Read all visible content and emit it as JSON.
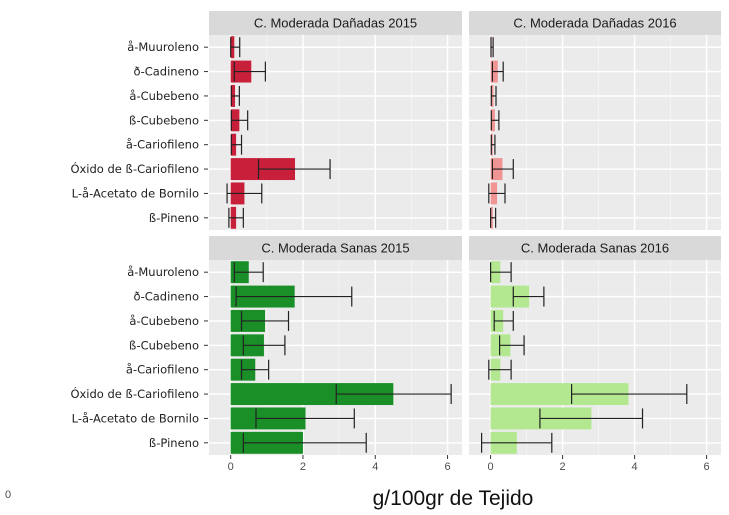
{
  "chart_data": {
    "type": "bar",
    "orientation": "horizontal",
    "facet_layout": "2x2",
    "xlabel": "g/100gr de Tejido",
    "ylabel": "",
    "xlim": [
      -0.6,
      6.4
    ],
    "xticks": [
      0,
      2,
      4,
      6
    ],
    "grid": true,
    "stray_label": "0",
    "categories": [
      "å-Muuroleno",
      "ð-Cadineno",
      "å-Cubebeno",
      "ß-Cubebeno",
      "å-Cariofileno",
      "Óxido de ß-Cariofileno",
      "L-å-Acetato de Bornilo",
      "ß-Pineno"
    ],
    "panels": [
      {
        "title": "C. Moderada Dañadas 2015",
        "color": "#c8203a",
        "values": [
          0.1,
          0.57,
          0.12,
          0.24,
          0.15,
          1.78,
          0.38,
          0.15
        ],
        "err_low": [
          0.0,
          0.1,
          0.02,
          0.02,
          0.02,
          0.77,
          -0.1,
          -0.05
        ],
        "err_high": [
          0.25,
          0.96,
          0.24,
          0.47,
          0.3,
          2.75,
          0.86,
          0.35
        ]
      },
      {
        "title": "C. Moderada Dañadas 2016",
        "color": "#f09494",
        "values": [
          0.03,
          0.2,
          0.08,
          0.12,
          0.06,
          0.33,
          0.18,
          0.06
        ],
        "err_low": [
          0.01,
          0.05,
          0.02,
          0.02,
          0.02,
          0.05,
          -0.05,
          0.0
        ],
        "err_high": [
          0.07,
          0.35,
          0.15,
          0.23,
          0.12,
          0.63,
          0.4,
          0.14
        ]
      },
      {
        "title": "C. Moderada Sanas 2015",
        "color": "#1a8f28",
        "values": [
          0.5,
          1.77,
          0.95,
          0.92,
          0.68,
          4.5,
          2.07,
          2.0
        ],
        "err_low": [
          0.1,
          0.15,
          0.3,
          0.35,
          0.3,
          2.92,
          0.7,
          0.35
        ],
        "err_high": [
          0.9,
          3.35,
          1.6,
          1.5,
          1.05,
          6.1,
          3.42,
          3.75
        ]
      },
      {
        "title": "C. Moderada Sanas 2016",
        "color": "#b3e891",
        "values": [
          0.27,
          1.07,
          0.35,
          0.55,
          0.27,
          3.83,
          2.8,
          0.73
        ],
        "err_low": [
          0.0,
          0.63,
          0.1,
          0.25,
          -0.05,
          2.25,
          1.37,
          -0.25
        ],
        "err_high": [
          0.57,
          1.48,
          0.63,
          0.93,
          0.57,
          5.45,
          4.22,
          1.7
        ]
      }
    ]
  }
}
